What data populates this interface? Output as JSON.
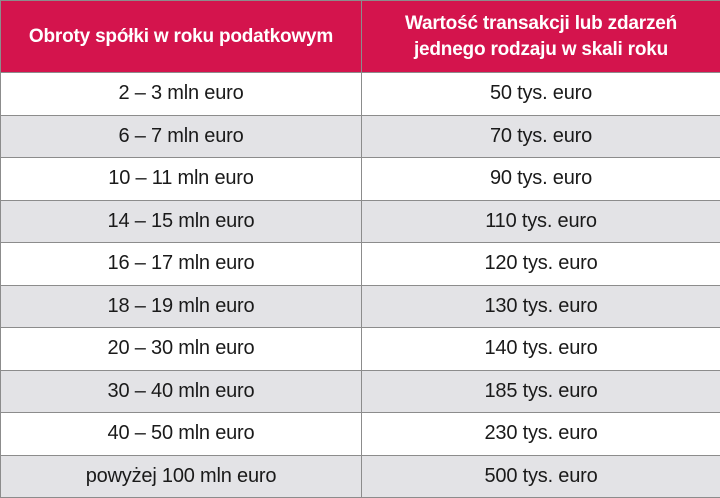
{
  "header": {
    "col1": "Obroty spółki w roku podatkowym",
    "col2_line1": "Wartość transakcji lub zdarzeń",
    "col2_line2": "jednego rodzaju w skali roku"
  },
  "rows": [
    {
      "turnover": "2 – 3 mln euro",
      "value": "50 tys. euro"
    },
    {
      "turnover": "6 – 7 mln euro",
      "value": "70 tys. euro"
    },
    {
      "turnover": "10 – 11 mln euro",
      "value": "90 tys. euro"
    },
    {
      "turnover": "14 – 15 mln euro",
      "value": "110 tys. euro"
    },
    {
      "turnover": "16 – 17 mln euro",
      "value": "120 tys. euro"
    },
    {
      "turnover": "18 – 19 mln euro",
      "value": "130 tys. euro"
    },
    {
      "turnover": "20 – 30 mln euro",
      "value": "140 tys. euro"
    },
    {
      "turnover": "30 – 40 mln euro",
      "value": "185 tys. euro"
    },
    {
      "turnover": "40 – 50 mln euro",
      "value": "230 tys. euro"
    },
    {
      "turnover": "powyżej 100 mln euro",
      "value": "500 tys. euro"
    }
  ],
  "colors": {
    "header_bg": "#d4144d",
    "header_text": "#ffffff",
    "stripe_bg": "#e3e3e6",
    "border": "#8c8c8c"
  }
}
